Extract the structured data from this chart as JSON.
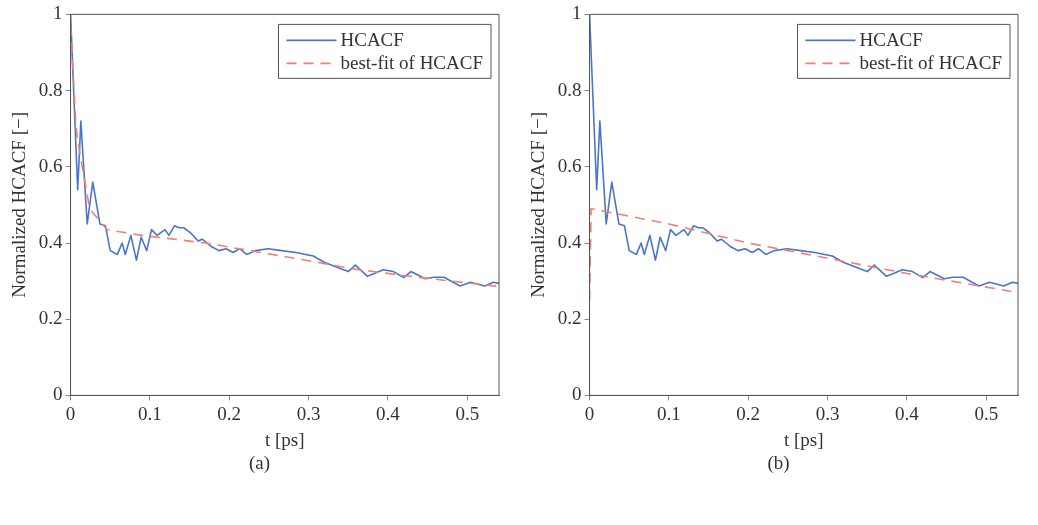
{
  "chart_data": [
    {
      "type": "line",
      "xlabel": "t [ps]",
      "ylabel": "Normalized HCACF [−]",
      "annotations": [
        "(a)"
      ],
      "xlim": [
        0,
        0.54
      ],
      "xticks": [
        0,
        0.1,
        0.2,
        0.3,
        0.4,
        0.5
      ],
      "ylim": [
        0,
        1
      ],
      "yticks": [
        0,
        0.2,
        0.4,
        0.6,
        0.8,
        1
      ],
      "grid": false,
      "legend": "top right",
      "marker": "none",
      "series": [
        {
          "name": "HCACF",
          "color": "#4a76c8",
          "line_style": "solid",
          "x": [
            0,
            0.009,
            0.013,
            0.021,
            0.028,
            0.037,
            0.044,
            0.05,
            0.059,
            0.065,
            0.069,
            0.076,
            0.083,
            0.089,
            0.096,
            0.102,
            0.109,
            0.119,
            0.124,
            0.131,
            0.137,
            0.143,
            0.152,
            0.161,
            0.166,
            0.172,
            0.178,
            0.187,
            0.196,
            0.205,
            0.213,
            0.222,
            0.233,
            0.249,
            0.266,
            0.284,
            0.306,
            0.319,
            0.335,
            0.35,
            0.359,
            0.374,
            0.383,
            0.394,
            0.407,
            0.42,
            0.429,
            0.447,
            0.458,
            0.471,
            0.482,
            0.491,
            0.504,
            0.522,
            0.533,
            0.54
          ],
          "values": [
            1.0,
            0.54,
            0.72,
            0.45,
            0.56,
            0.45,
            0.445,
            0.38,
            0.37,
            0.4,
            0.37,
            0.42,
            0.355,
            0.415,
            0.38,
            0.435,
            0.42,
            0.435,
            0.42,
            0.445,
            0.44,
            0.44,
            0.425,
            0.405,
            0.41,
            0.4,
            0.39,
            0.38,
            0.385,
            0.375,
            0.385,
            0.37,
            0.38,
            0.385,
            0.38,
            0.375,
            0.366,
            0.35,
            0.337,
            0.325,
            0.342,
            0.313,
            0.32,
            0.33,
            0.325,
            0.309,
            0.325,
            0.306,
            0.31,
            0.31,
            0.297,
            0.287,
            0.297,
            0.287,
            0.297,
            0.294
          ]
        },
        {
          "name": "best-fit of HCACF",
          "color": "#f08070",
          "line_style": "dashed",
          "x": [
            0,
            0.007,
            0.013,
            0.02,
            0.024,
            0.046,
            0.09,
            0.17,
            0.24,
            0.293,
            0.363,
            0.438,
            0.522,
            0.54
          ],
          "values": [
            0.97,
            0.7,
            0.62,
            0.54,
            0.49,
            0.435,
            0.42,
            0.4,
            0.375,
            0.356,
            0.33,
            0.31,
            0.29,
            0.286
          ]
        }
      ]
    },
    {
      "type": "line",
      "xlabel": "t [ps]",
      "ylabel": "Normalized HCACF [−]",
      "annotations": [
        "(b)"
      ],
      "xlim": [
        0,
        0.54
      ],
      "xticks": [
        0,
        0.1,
        0.2,
        0.3,
        0.4,
        0.5
      ],
      "ylim": [
        0,
        1
      ],
      "yticks": [
        0,
        0.2,
        0.4,
        0.6,
        0.8,
        1
      ],
      "grid": false,
      "legend": "top right",
      "marker": "none",
      "series": [
        {
          "name": "HCACF",
          "color": "#4a76c8",
          "line_style": "solid",
          "x": [
            0,
            0.009,
            0.013,
            0.021,
            0.028,
            0.037,
            0.044,
            0.05,
            0.059,
            0.065,
            0.069,
            0.076,
            0.083,
            0.089,
            0.096,
            0.102,
            0.109,
            0.119,
            0.124,
            0.131,
            0.137,
            0.143,
            0.152,
            0.161,
            0.166,
            0.172,
            0.178,
            0.187,
            0.196,
            0.205,
            0.213,
            0.222,
            0.233,
            0.249,
            0.266,
            0.284,
            0.306,
            0.319,
            0.335,
            0.35,
            0.359,
            0.374,
            0.383,
            0.394,
            0.407,
            0.42,
            0.429,
            0.447,
            0.458,
            0.471,
            0.482,
            0.491,
            0.504,
            0.522,
            0.533,
            0.54
          ],
          "values": [
            1.0,
            0.54,
            0.72,
            0.45,
            0.56,
            0.45,
            0.445,
            0.38,
            0.37,
            0.4,
            0.37,
            0.42,
            0.355,
            0.415,
            0.38,
            0.435,
            0.42,
            0.435,
            0.42,
            0.445,
            0.44,
            0.44,
            0.425,
            0.405,
            0.41,
            0.4,
            0.39,
            0.38,
            0.385,
            0.375,
            0.385,
            0.37,
            0.38,
            0.385,
            0.38,
            0.375,
            0.366,
            0.35,
            0.337,
            0.325,
            0.342,
            0.313,
            0.32,
            0.33,
            0.325,
            0.309,
            0.325,
            0.306,
            0.31,
            0.31,
            0.297,
            0.287,
            0.297,
            0.287,
            0.297,
            0.294
          ]
        },
        {
          "name": "best-fit of HCACF",
          "color": "#f08070",
          "line_style": "dashed",
          "x": [
            0,
            0.002,
            0.1,
            0.2,
            0.3,
            0.4,
            0.54
          ],
          "values": [
            0.25,
            0.49,
            0.45,
            0.4,
            0.36,
            0.32,
            0.27
          ]
        }
      ]
    }
  ]
}
